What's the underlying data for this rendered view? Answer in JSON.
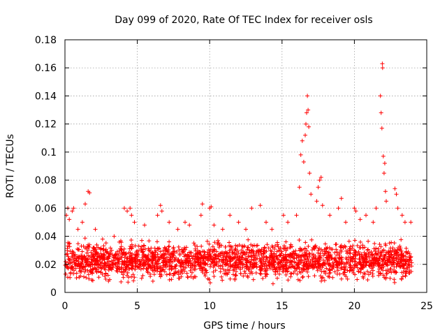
{
  "chart_data": {
    "type": "scatter",
    "title": "Day 099 of 2020, Rate Of TEC Index for receiver osls",
    "xlabel": "GPS time / hours",
    "ylabel": "ROTI / TECUs",
    "xlim": [
      0,
      25
    ],
    "ylim": [
      0,
      0.18
    ],
    "x_ticks": [
      "0",
      "5",
      "10",
      "15",
      "20",
      "25"
    ],
    "y_ticks": [
      "0",
      "0.02",
      "0.04",
      "0.06",
      "0.08",
      "0.1",
      "0.12",
      "0.14",
      "0.16",
      "0.18"
    ],
    "grid": true,
    "legend": "none",
    "marker": "plus",
    "color": "#ff0000",
    "series": [
      {
        "x_range": [
          0,
          24
        ],
        "baseline_y_range": [
          0.005,
          0.04
        ],
        "points": [
          [
            0.1,
            0.055
          ],
          [
            0.2,
            0.06
          ],
          [
            0.3,
            0.052
          ],
          [
            0.5,
            0.058
          ],
          [
            0.6,
            0.06
          ],
          [
            0.9,
            0.045
          ],
          [
            1.2,
            0.05
          ],
          [
            1.4,
            0.063
          ],
          [
            1.6,
            0.072
          ],
          [
            1.7,
            0.071
          ],
          [
            2.1,
            0.045
          ],
          [
            2.6,
            0.038
          ],
          [
            3.4,
            0.04
          ],
          [
            4.1,
            0.06
          ],
          [
            4.3,
            0.058
          ],
          [
            4.5,
            0.06
          ],
          [
            4.6,
            0.055
          ],
          [
            4.8,
            0.05
          ],
          [
            5.5,
            0.048
          ],
          [
            6.4,
            0.055
          ],
          [
            6.6,
            0.062
          ],
          [
            6.7,
            0.058
          ],
          [
            7.2,
            0.05
          ],
          [
            7.8,
            0.045
          ],
          [
            8.3,
            0.05
          ],
          [
            8.6,
            0.048
          ],
          [
            9.4,
            0.055
          ],
          [
            9.5,
            0.063
          ],
          [
            10.0,
            0.06
          ],
          [
            10.1,
            0.061
          ],
          [
            10.3,
            0.048
          ],
          [
            10.9,
            0.045
          ],
          [
            11.4,
            0.055
          ],
          [
            12.0,
            0.05
          ],
          [
            12.5,
            0.045
          ],
          [
            12.9,
            0.06
          ],
          [
            13.5,
            0.062
          ],
          [
            13.9,
            0.05
          ],
          [
            14.3,
            0.045
          ],
          [
            15.1,
            0.055
          ],
          [
            15.4,
            0.05
          ],
          [
            16.0,
            0.055
          ],
          [
            16.2,
            0.075
          ],
          [
            16.3,
            0.098
          ],
          [
            16.4,
            0.108
          ],
          [
            16.5,
            0.093
          ],
          [
            16.6,
            0.112
          ],
          [
            16.65,
            0.12
          ],
          [
            16.7,
            0.128
          ],
          [
            16.75,
            0.14
          ],
          [
            16.8,
            0.13
          ],
          [
            16.85,
            0.118
          ],
          [
            16.9,
            0.085
          ],
          [
            17.0,
            0.07
          ],
          [
            17.4,
            0.065
          ],
          [
            17.5,
            0.075
          ],
          [
            17.6,
            0.08
          ],
          [
            17.7,
            0.082
          ],
          [
            17.8,
            0.062
          ],
          [
            18.3,
            0.055
          ],
          [
            18.9,
            0.06
          ],
          [
            19.1,
            0.067
          ],
          [
            19.4,
            0.05
          ],
          [
            20.0,
            0.06
          ],
          [
            20.1,
            0.058
          ],
          [
            20.4,
            0.052
          ],
          [
            20.8,
            0.055
          ],
          [
            21.3,
            0.05
          ],
          [
            21.5,
            0.06
          ],
          [
            21.8,
            0.14
          ],
          [
            21.85,
            0.128
          ],
          [
            21.9,
            0.117
          ],
          [
            21.93,
            0.163
          ],
          [
            21.95,
            0.16
          ],
          [
            22.0,
            0.097
          ],
          [
            22.05,
            0.085
          ],
          [
            22.1,
            0.092
          ],
          [
            22.15,
            0.072
          ],
          [
            22.2,
            0.065
          ],
          [
            22.8,
            0.074
          ],
          [
            22.9,
            0.07
          ],
          [
            23.0,
            0.06
          ],
          [
            23.3,
            0.055
          ],
          [
            23.5,
            0.05
          ],
          [
            23.9,
            0.05
          ]
        ]
      }
    ]
  }
}
